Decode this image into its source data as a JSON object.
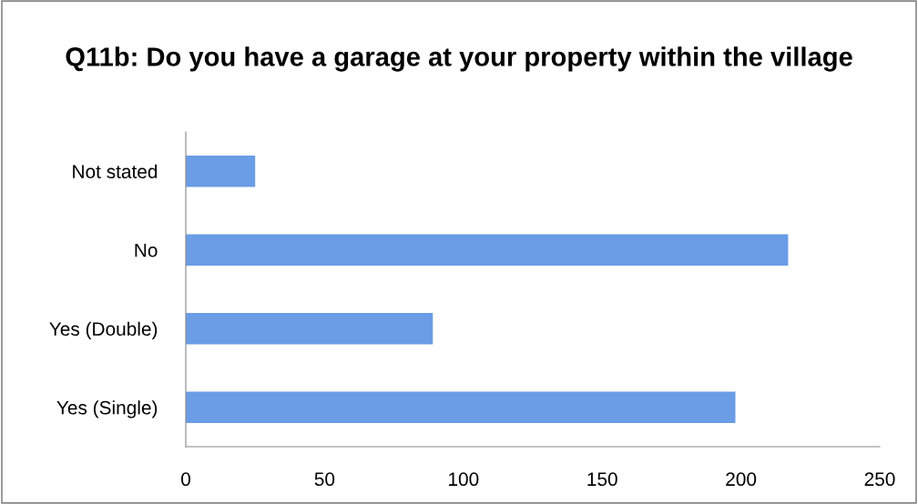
{
  "chart_data": {
    "type": "bar",
    "orientation": "horizontal",
    "title": "Q11b: Do you have a garage at your property within the village",
    "categories": [
      "Not stated",
      "No",
      "Yes (Double)",
      "Yes (Single)"
    ],
    "values": [
      25,
      217,
      89,
      198
    ],
    "color": "#6a9de6",
    "xlim": [
      0,
      250
    ],
    "xticks": [
      0,
      50,
      100,
      150,
      200,
      250
    ],
    "grid": false,
    "legend": false
  }
}
